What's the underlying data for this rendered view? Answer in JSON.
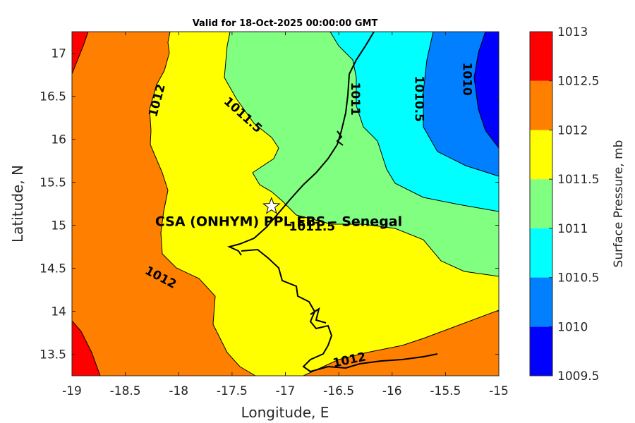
{
  "title": "Valid for 18-Oct-2025 00:00:00 GMT",
  "xlabel": "Longitude, E",
  "ylabel": "Latitude, N",
  "site_label": "CSA (ONHYM) PPL EBS  – Senegal",
  "colorbar_label": "Surface Pressure, mb",
  "chart_data": {
    "type": "contour-map",
    "title": "Valid for 18-Oct-2025 00:00:00 GMT",
    "xlabel": "Longitude, E",
    "ylabel": "Latitude, N",
    "xlim": [
      -19,
      -15
    ],
    "ylim": [
      13.25,
      17.25
    ],
    "x_ticks": [
      -19,
      -18.5,
      -18,
      -17.5,
      -17,
      -16.5,
      -16,
      -15.5,
      -15
    ],
    "x_tick_labels": [
      "-19",
      "-18.5",
      "-18",
      "-17.5",
      "-17",
      "-16.5",
      "-16",
      "-15.5",
      "-15"
    ],
    "y_ticks": [
      17,
      16.5,
      16,
      15.5,
      15,
      14.5,
      14,
      13.5
    ],
    "y_tick_labels": [
      "17",
      "16.5",
      "16",
      "15.5",
      "15",
      "14.5",
      "14",
      "13.5"
    ],
    "site": {
      "name": "CSA (ONHYM) PPL EBS  – Senegal",
      "lon": -17.13,
      "lat": 15.22,
      "marker": "star"
    },
    "contour_labels": [
      {
        "text": "1012",
        "lon": -18.2,
        "lat": 16.45,
        "angle": -75
      },
      {
        "text": "1011.5",
        "lon": -17.4,
        "lat": 16.28,
        "angle": 42
      },
      {
        "text": "1011",
        "lon": -16.35,
        "lat": 16.47,
        "angle": 90
      },
      {
        "text": "1010.5",
        "lon": -15.75,
        "lat": 16.47,
        "angle": 90
      },
      {
        "text": "1010",
        "lon": -15.3,
        "lat": 16.7,
        "angle": 90
      },
      {
        "text": "1011.5",
        "lon": -16.75,
        "lat": 14.98,
        "angle": 0
      },
      {
        "text": "1012",
        "lon": -18.17,
        "lat": 14.39,
        "angle": 28
      },
      {
        "text": "1012",
        "lon": -16.4,
        "lat": 13.43,
        "angle": -12
      }
    ],
    "colorbar": {
      "levels": [
        1009.5,
        1010,
        1010.5,
        1011,
        1011.5,
        1012,
        1012.5,
        1013
      ],
      "tick_labels": [
        "1009.5",
        "1010",
        "1010.5",
        "1011",
        "1011.5",
        "1012",
        "1012.5",
        "1013"
      ],
      "colors": [
        "#0000ff",
        "#0080ff",
        "#00ffff",
        "#80ff80",
        "#ffff00",
        "#ff8000",
        "#ff0000",
        "#800000"
      ],
      "label": "Surface Pressure, mb"
    }
  }
}
